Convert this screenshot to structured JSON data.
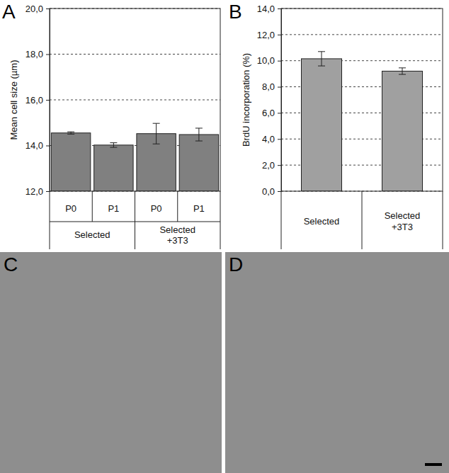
{
  "chart_data": [
    {
      "type": "bar",
      "annotations": [
        "A"
      ],
      "groups": [
        {
          "label": "Selected",
          "categories": [
            "P0",
            "P1"
          ]
        },
        {
          "label": "Selected +3T3",
          "categories": [
            "P0",
            "P1"
          ]
        }
      ],
      "values": [
        14.55,
        14.02,
        14.52,
        14.48
      ],
      "errors": [
        0.05,
        0.1,
        0.45,
        0.28
      ],
      "color": "#808080",
      "y_label": "Mean cell size (µm)",
      "ylim": [
        12,
        20
      ],
      "yticks": [
        {
          "value": 12,
          "label": "12,0"
        },
        {
          "value": 14,
          "label": "14,0"
        },
        {
          "value": 16,
          "label": "16,0"
        },
        {
          "value": 18,
          "label": "18,0"
        },
        {
          "value": 20,
          "label": "20,0"
        }
      ],
      "grid": true
    },
    {
      "type": "bar",
      "annotations": [
        "B"
      ],
      "categories": [
        "Selected",
        "Selected +3T3"
      ],
      "values": [
        10.15,
        9.2
      ],
      "errors": [
        0.55,
        0.25
      ],
      "color": "#a0a0a0",
      "y_label": "BrdU incorporation (%)",
      "ylim": [
        0,
        14
      ],
      "yticks": [
        {
          "value": 0,
          "label": "0,0"
        },
        {
          "value": 2,
          "label": "2,0"
        },
        {
          "value": 4,
          "label": "4,0"
        },
        {
          "value": 6,
          "label": "6,0"
        },
        {
          "value": 8,
          "label": "8,0"
        },
        {
          "value": 10,
          "label": "10,0"
        },
        {
          "value": 12,
          "label": "12,0"
        },
        {
          "value": 14,
          "label": "14,0"
        }
      ],
      "grid": true
    }
  ],
  "images": [
    {
      "label": "C"
    },
    {
      "label": "D"
    }
  ]
}
